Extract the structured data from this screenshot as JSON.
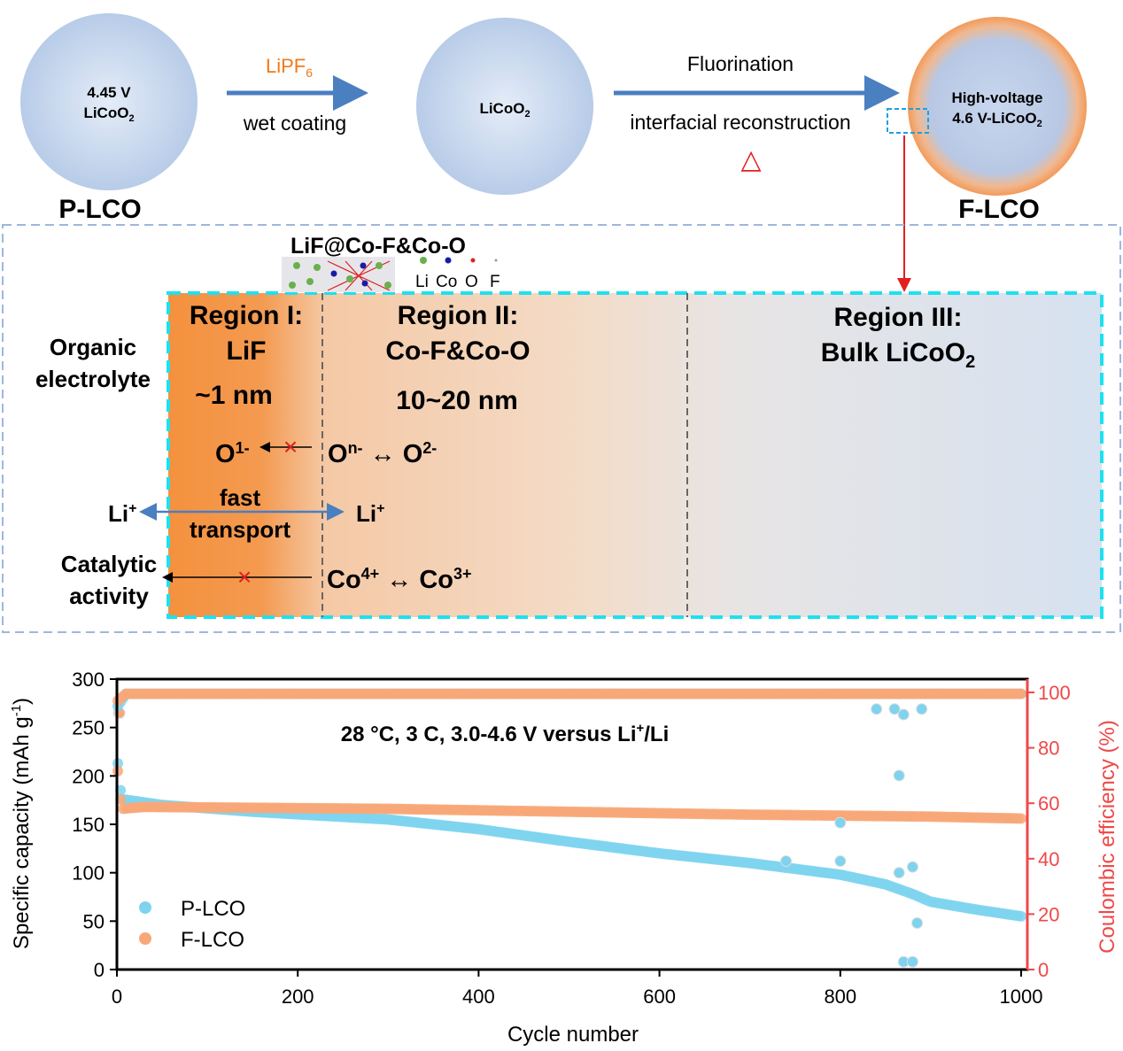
{
  "top": {
    "particle1": {
      "line1": "4.45 V",
      "line2": "LiCoO",
      "sub": "2",
      "label": "P-LCO"
    },
    "arrow1": {
      "reagent": "LiPF",
      "reagent_sub": "6",
      "process": "wet coating"
    },
    "particle2": {
      "text": "LiCoO",
      "sub": "2"
    },
    "arrow2": {
      "above": "Fluorination",
      "below": "interfacial reconstruction",
      "delta": "△"
    },
    "particle3": {
      "line1": "High-voltage",
      "line2": "4.6 V-LiCoO",
      "sub": "2",
      "label": "F-LCO"
    }
  },
  "detail": {
    "structure_title": "LiF@Co-F&Co-O",
    "atoms": [
      "Li",
      "Co",
      "O",
      "F"
    ],
    "atom_colors": [
      "#6ab04c",
      "#1a1aa8",
      "#e02020",
      "#999999"
    ],
    "electrolyte": [
      "Organic",
      "electrolyte"
    ],
    "region1": {
      "title": "Region I:",
      "name": "LiF",
      "thickness": "~1 nm"
    },
    "region2": {
      "title": "Region II:",
      "name": "Co-F&Co-O",
      "thickness": "10~20 nm"
    },
    "region3": {
      "title": "Region III:",
      "name": "Bulk LiCoO",
      "sub": "2"
    },
    "oxygen": {
      "left": "O",
      "left_sup": "1-",
      "right_a": "O",
      "right_a_sup": "n-",
      "arrow": " ↔ ",
      "right_b": "O",
      "right_b_sup": "2-"
    },
    "lithium": {
      "left": "Li",
      "left_sup": "+",
      "mid1": "fast",
      "mid2": "transport",
      "right": "Li",
      "right_sup": "+"
    },
    "cobalt": {
      "left1": "Catalytic",
      "left2": "activity",
      "a": "Co",
      "a_sup": "4+",
      "arrow": " ↔ ",
      "b": "Co",
      "b_sup": "3+"
    },
    "block_mark": "×"
  },
  "chart_data": {
    "type": "scatter",
    "xlabel": "Cycle number",
    "ylabel": "Specific capacity (mAh g",
    "ylabel_sup": "-1",
    "ylabel_end": ")",
    "y2label": "Coulombic efficiency (%)",
    "annotation": "28 °C, 3 C, 3.0-4.6 V versus Li",
    "annotation_sup": "+",
    "annotation_end": "/Li",
    "xlim": [
      0,
      1000
    ],
    "ylim": [
      0,
      300
    ],
    "y2lim": [
      0,
      105
    ],
    "xticks": [
      0,
      200,
      400,
      600,
      800,
      1000
    ],
    "yticks": [
      0,
      50,
      100,
      150,
      200,
      250,
      300
    ],
    "y2ticks": [
      0,
      20,
      40,
      60,
      80,
      100
    ],
    "legend": [
      "P-LCO",
      "F-LCO"
    ],
    "legend_position": "bottom-left",
    "colors": {
      "P-LCO": "#7fd3ef",
      "F-LCO": "#f8a878",
      "y2axis": "#f04848"
    },
    "series": [
      {
        "name": "P-LCO capacity",
        "axis": "left",
        "color": "#7fd3ef",
        "anchors": [
          [
            1,
            213
          ],
          [
            5,
            176
          ],
          [
            50,
            170
          ],
          [
            150,
            163
          ],
          [
            300,
            155
          ],
          [
            400,
            145
          ],
          [
            500,
            132
          ],
          [
            600,
            120
          ],
          [
            700,
            110
          ],
          [
            800,
            98
          ],
          [
            850,
            88
          ],
          [
            880,
            78
          ],
          [
            900,
            70
          ],
          [
            950,
            62
          ],
          [
            1000,
            55
          ]
        ],
        "outliers": [
          [
            2,
            265
          ],
          [
            800,
            112
          ],
          [
            740,
            112
          ],
          [
            865,
            100
          ],
          [
            880,
            106
          ],
          [
            885,
            48
          ],
          [
            870,
            8
          ],
          [
            880,
            8
          ]
        ]
      },
      {
        "name": "F-LCO capacity",
        "axis": "left",
        "color": "#f8a878",
        "anchors": [
          [
            1,
            205
          ],
          [
            5,
            166
          ],
          [
            30,
            168
          ],
          [
            300,
            166
          ],
          [
            500,
            163
          ],
          [
            700,
            160
          ],
          [
            900,
            158
          ],
          [
            1000,
            156
          ]
        ],
        "outliers": [
          [
            3,
            265
          ]
        ]
      },
      {
        "name": "P-LCO CE",
        "axis": "right",
        "color": "#7fd3ef",
        "anchors": [
          [
            1,
            95
          ],
          [
            10,
            99.5
          ],
          [
            1000,
            99.5
          ]
        ],
        "outliers": [
          [
            800,
            53
          ],
          [
            865,
            70
          ],
          [
            860,
            94
          ],
          [
            870,
            92
          ],
          [
            890,
            94
          ],
          [
            840,
            94
          ]
        ]
      },
      {
        "name": "F-LCO CE",
        "axis": "right",
        "color": "#f8a878",
        "anchors": [
          [
            1,
            97
          ],
          [
            10,
            99.5
          ],
          [
            1000,
            99.5
          ]
        ],
        "outliers": []
      }
    ]
  }
}
